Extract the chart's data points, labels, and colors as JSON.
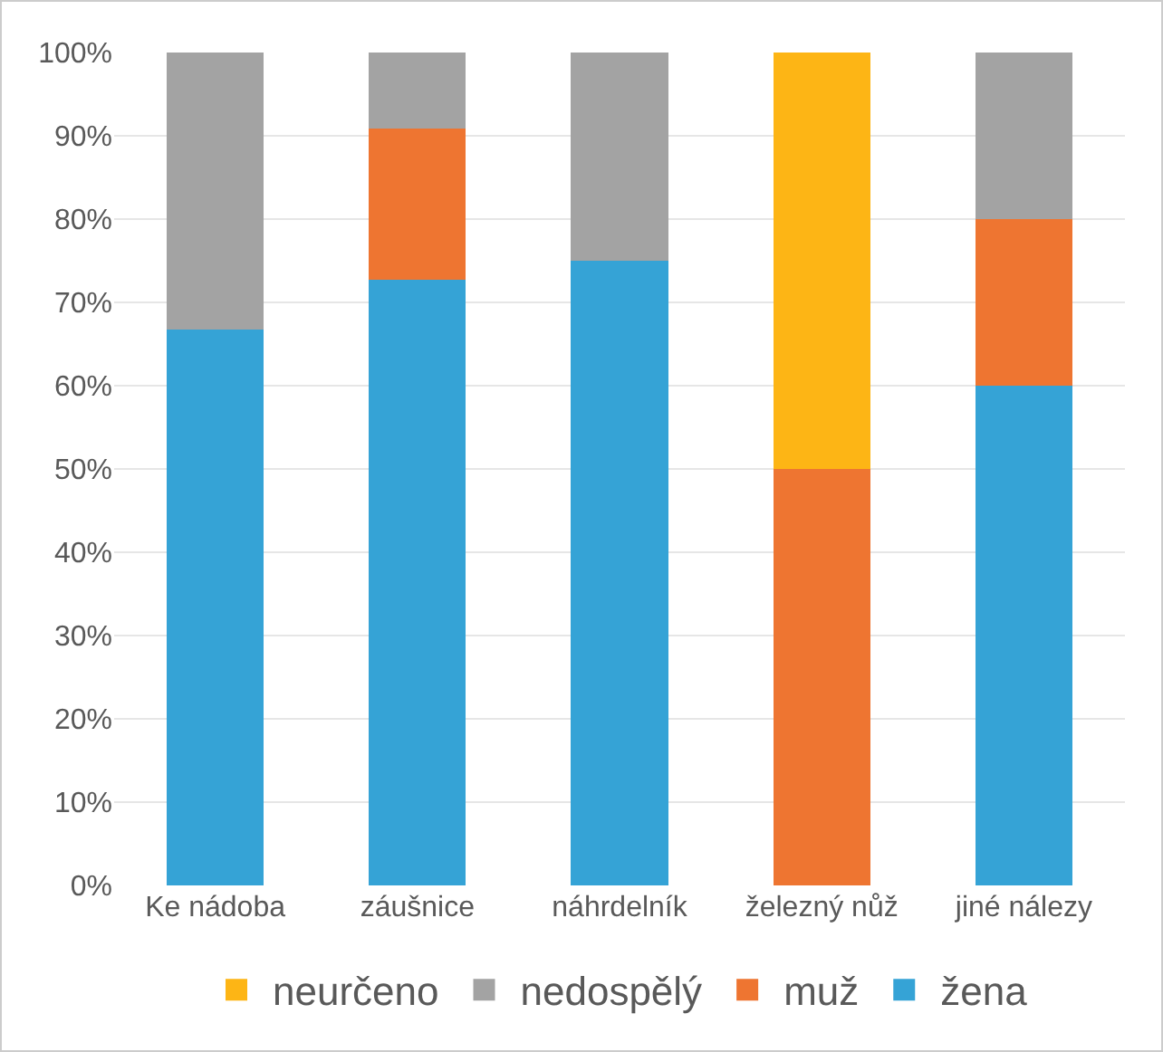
{
  "chart_data": {
    "type": "bar",
    "stacked": true,
    "categories": [
      "Ke nádoba",
      "záušnice",
      "náhrdelník",
      "železný nůž",
      "jiné nálezy"
    ],
    "series": [
      {
        "name": "žena",
        "color": "#35a3d6",
        "values": [
          66.7,
          72.7,
          75,
          0,
          60
        ]
      },
      {
        "name": "muž",
        "color": "#ee7531",
        "values": [
          0,
          18.2,
          0,
          50,
          20
        ]
      },
      {
        "name": "nedospělý",
        "color": "#a3a3a3",
        "values": [
          33.3,
          9.1,
          25,
          0,
          20
        ]
      },
      {
        "name": "neurčeno",
        "color": "#fdb515",
        "values": [
          0,
          0,
          0,
          50,
          0
        ]
      }
    ],
    "ylim": [
      0,
      100
    ],
    "yticks": [
      {
        "value": 0,
        "label": "0%"
      },
      {
        "value": 10,
        "label": "10%"
      },
      {
        "value": 20,
        "label": "20%"
      },
      {
        "value": 30,
        "label": "30%"
      },
      {
        "value": 40,
        "label": "40%"
      },
      {
        "value": 50,
        "label": "50%"
      },
      {
        "value": 60,
        "label": "60%"
      },
      {
        "value": 70,
        "label": "70%"
      },
      {
        "value": 80,
        "label": "80%"
      },
      {
        "value": 90,
        "label": "90%"
      },
      {
        "value": 100,
        "label": "100%"
      }
    ],
    "grid": "y",
    "legend": "bottom"
  }
}
